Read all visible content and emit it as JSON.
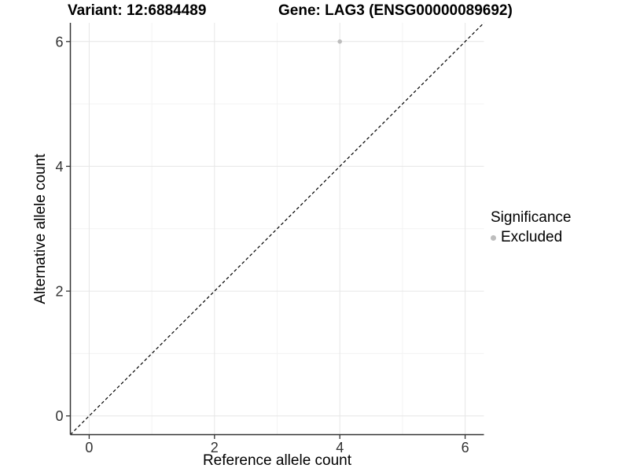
{
  "header": {
    "variant_title": "Variant: 12:6884489",
    "gene_title": "Gene: LAG3 (ENSG00000089692)"
  },
  "axes": {
    "x_title": "Reference allele count",
    "y_title": "Alternative allele count"
  },
  "legend": {
    "title": "Significance",
    "items": [
      {
        "label": "Excluded",
        "color": "#bdbdbd"
      }
    ]
  },
  "chart_data": {
    "type": "scatter",
    "title": "Variant: 12:6884489 | Gene: LAG3 (ENSG00000089692)",
    "xlabel": "Reference allele count",
    "ylabel": "Alternative allele count",
    "xlim": [
      -0.3,
      6.3
    ],
    "ylim": [
      -0.3,
      6.3
    ],
    "xticks": [
      0,
      2,
      4,
      6
    ],
    "yticks": [
      0,
      2,
      4,
      6
    ],
    "xticks_minor": [
      1,
      3,
      5
    ],
    "yticks_minor": [
      1,
      3,
      5
    ],
    "grid": true,
    "legend_position": "right",
    "series": [
      {
        "name": "Excluded",
        "color": "#bdbdbd",
        "marker": "circle",
        "points": [
          {
            "x": 4,
            "y": 6
          }
        ]
      }
    ],
    "reference_line": {
      "type": "identity",
      "equation": "y = x",
      "style": "dashed",
      "color": "#000000"
    },
    "colors": {
      "grid_major": "#e6e6e6",
      "grid_minor": "#f3f3f3",
      "axis": "#333333",
      "tick_label": "#333333"
    }
  }
}
